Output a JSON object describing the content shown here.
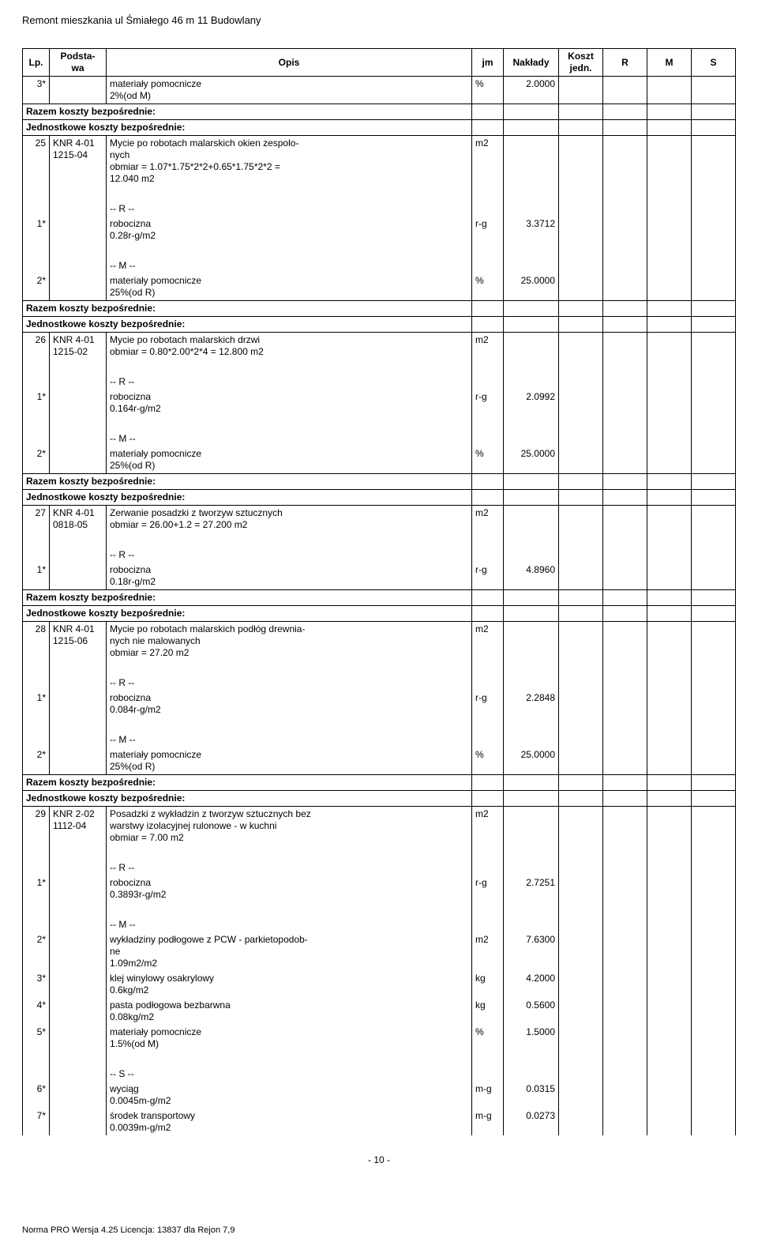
{
  "doc_title": "Remont mieszkania ul Śmiałego 46 m 11 Budowlany",
  "page_number": "- 10 -",
  "footer": "Norma PRO Wersja 4.25 Licencja: 13837 dla Rejon 7,9",
  "headers": {
    "lp": "Lp.",
    "podstawa": "Podsta-\nwa",
    "opis": "Opis",
    "jm": "jm",
    "naklady": "Nakłady",
    "koszt": "Koszt\njedn.",
    "r": "R",
    "m": "M",
    "s": "S"
  },
  "labels": {
    "razem": "Razem koszty bezpośrednie:",
    "jednostkowe": "Jednostkowe koszty bezpośrednie:"
  },
  "rows": [
    {
      "lp": "3*",
      "opis": "materiały pomocnicze\n2%(od M)",
      "jm": "%",
      "nak": "2.0000"
    },
    {
      "razem": true
    },
    {
      "jednostkowe": true
    },
    {
      "lp": "25",
      "pod": "KNR 4-01\n1215-04",
      "opis": "Mycie po robotach malarskich okien zespolo-\nnych\nobmiar  =  1.07*1.75*2*2+0.65*1.75*2*2 =\n12.040 m2",
      "jm": "m2"
    },
    {
      "blank": true
    },
    {
      "opis": "-- R --"
    },
    {
      "lp": "1*",
      "opis": "robocizna\n0.28r-g/m2",
      "jm": "r-g",
      "nak": "3.3712"
    },
    {
      "blank": true
    },
    {
      "opis": "-- M --"
    },
    {
      "lp": "2*",
      "opis": "materiały pomocnicze\n25%(od R)",
      "jm": "%",
      "nak": "25.0000"
    },
    {
      "razem": true
    },
    {
      "jednostkowe": true
    },
    {
      "lp": "26",
      "pod": "KNR 4-01\n1215-02",
      "opis": "Mycie po robotach malarskich drzwi\nobmiar  =  0.80*2.00*2*4 = 12.800 m2",
      "jm": "m2"
    },
    {
      "blank": true
    },
    {
      "opis": "-- R --"
    },
    {
      "lp": "1*",
      "opis": "robocizna\n0.164r-g/m2",
      "jm": "r-g",
      "nak": "2.0992"
    },
    {
      "blank": true
    },
    {
      "opis": "-- M --"
    },
    {
      "lp": "2*",
      "opis": "materiały pomocnicze\n25%(od R)",
      "jm": "%",
      "nak": "25.0000"
    },
    {
      "razem": true
    },
    {
      "jednostkowe": true
    },
    {
      "lp": "27",
      "pod": "KNR 4-01\n0818-05",
      "opis": "Zerwanie posadzki z tworzyw sztucznych\nobmiar  =  26.00+1.2 = 27.200 m2",
      "jm": "m2"
    },
    {
      "blank": true
    },
    {
      "opis": "-- R --"
    },
    {
      "lp": "1*",
      "opis": "robocizna\n0.18r-g/m2",
      "jm": "r-g",
      "nak": "4.8960"
    },
    {
      "razem": true
    },
    {
      "jednostkowe": true
    },
    {
      "lp": "28",
      "pod": "KNR 4-01\n1215-06",
      "opis": "Mycie po robotach malarskich podłóg drewnia-\nnych nie malowanych\nobmiar  =  27.20 m2",
      "jm": "m2"
    },
    {
      "blank": true
    },
    {
      "opis": "-- R --"
    },
    {
      "lp": "1*",
      "opis": "robocizna\n0.084r-g/m2",
      "jm": "r-g",
      "nak": "2.2848"
    },
    {
      "blank": true
    },
    {
      "opis": "-- M --"
    },
    {
      "lp": "2*",
      "opis": "materiały pomocnicze\n25%(od R)",
      "jm": "%",
      "nak": "25.0000"
    },
    {
      "razem": true
    },
    {
      "jednostkowe": true
    },
    {
      "lp": "29",
      "pod": "KNR 2-02\n1112-04",
      "opis": "Posadzki z wykładzin z tworzyw sztucznych bez\nwarstwy izolacyjnej rulonowe - w kuchni\nobmiar  =  7.00 m2",
      "jm": "m2"
    },
    {
      "blank": true
    },
    {
      "opis": "-- R --"
    },
    {
      "lp": "1*",
      "opis": "robocizna\n0.3893r-g/m2",
      "jm": "r-g",
      "nak": "2.7251"
    },
    {
      "blank": true
    },
    {
      "opis": "-- M --"
    },
    {
      "lp": "2*",
      "opis": "wykładziny podłogowe z PCW - parkietopodob-\nne\n1.09m2/m2",
      "jm": "m2",
      "nak": "7.6300"
    },
    {
      "lp": "3*",
      "opis": "klej winylowy osakrylowy\n0.6kg/m2",
      "jm": "kg",
      "nak": "4.2000"
    },
    {
      "lp": "4*",
      "opis": "pasta podłogowa bezbarwna\n0.08kg/m2",
      "jm": "kg",
      "nak": "0.5600"
    },
    {
      "lp": "5*",
      "opis": "materiały pomocnicze\n1.5%(od M)",
      "jm": "%",
      "nak": "1.5000"
    },
    {
      "blank": true
    },
    {
      "opis": "-- S --"
    },
    {
      "lp": "6*",
      "opis": "wyciąg\n0.0045m-g/m2",
      "jm": "m-g",
      "nak": "0.0315"
    },
    {
      "lp": "7*",
      "opis": "środek transportowy\n0.0039m-g/m2",
      "jm": "m-g",
      "nak": "0.0273"
    }
  ]
}
